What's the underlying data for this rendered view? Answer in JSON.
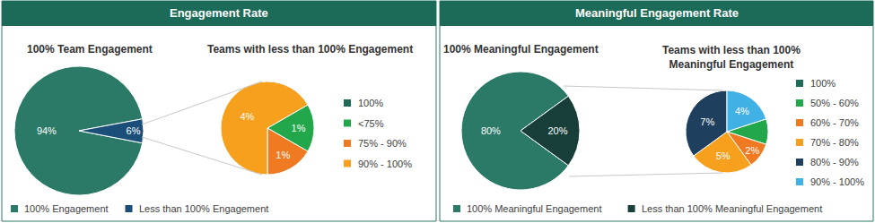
{
  "chart_data": [
    {
      "type": "pie",
      "title": "Engagement Rate",
      "pies": [
        {
          "title": "100% Team Engagement",
          "categories": [
            "100% Engagement",
            "Less than 100% Engagement"
          ],
          "values": [
            94,
            6
          ],
          "value_labels": [
            "94%",
            "6%"
          ],
          "colors": [
            "#2b7a68",
            "#1b4f7a"
          ],
          "data_labels": true,
          "legend": "bottom"
        },
        {
          "title": "Teams with less than 100% Engagement",
          "categories": [
            "100%",
            "<75%",
            "75% - 90%",
            "90% - 100%"
          ],
          "values": [
            0,
            1,
            1,
            4
          ],
          "value_labels": [
            null,
            "1%",
            "1%",
            "4%"
          ],
          "colors": [
            "#1e6b5a",
            "#22a84a",
            "#f07a22",
            "#f7a01d"
          ],
          "data_labels": true,
          "legend": "right"
        }
      ]
    },
    {
      "type": "pie",
      "title": "Meaningful Engagement Rate",
      "pies": [
        {
          "title": "100% Meaningful Engagement",
          "categories": [
            "100% Meaningful Engagement",
            "Less than 100% Meaningful Engagement"
          ],
          "values": [
            80,
            20
          ],
          "value_labels": [
            "80%",
            "20%"
          ],
          "colors": [
            "#2b7a68",
            "#173e38"
          ],
          "data_labels": true,
          "legend": "bottom"
        },
        {
          "title": "Teams with less than 100%\nMeaningful Engagement",
          "categories": [
            "100%",
            "50% - 60%",
            "60% - 70%",
            "70% - 80%",
            "80% - 90%",
            "90% - 100%"
          ],
          "values": [
            0,
            2,
            2,
            5,
            7,
            4
          ],
          "value_labels": [
            null,
            null,
            "2%",
            "5%",
            "7%",
            "4%"
          ],
          "colors": [
            "#1e6b5a",
            "#22a84a",
            "#f07a22",
            "#f7a01d",
            "#1f3f5e",
            "#3fb1e5"
          ],
          "data_labels": true,
          "legend": "right"
        }
      ]
    }
  ]
}
